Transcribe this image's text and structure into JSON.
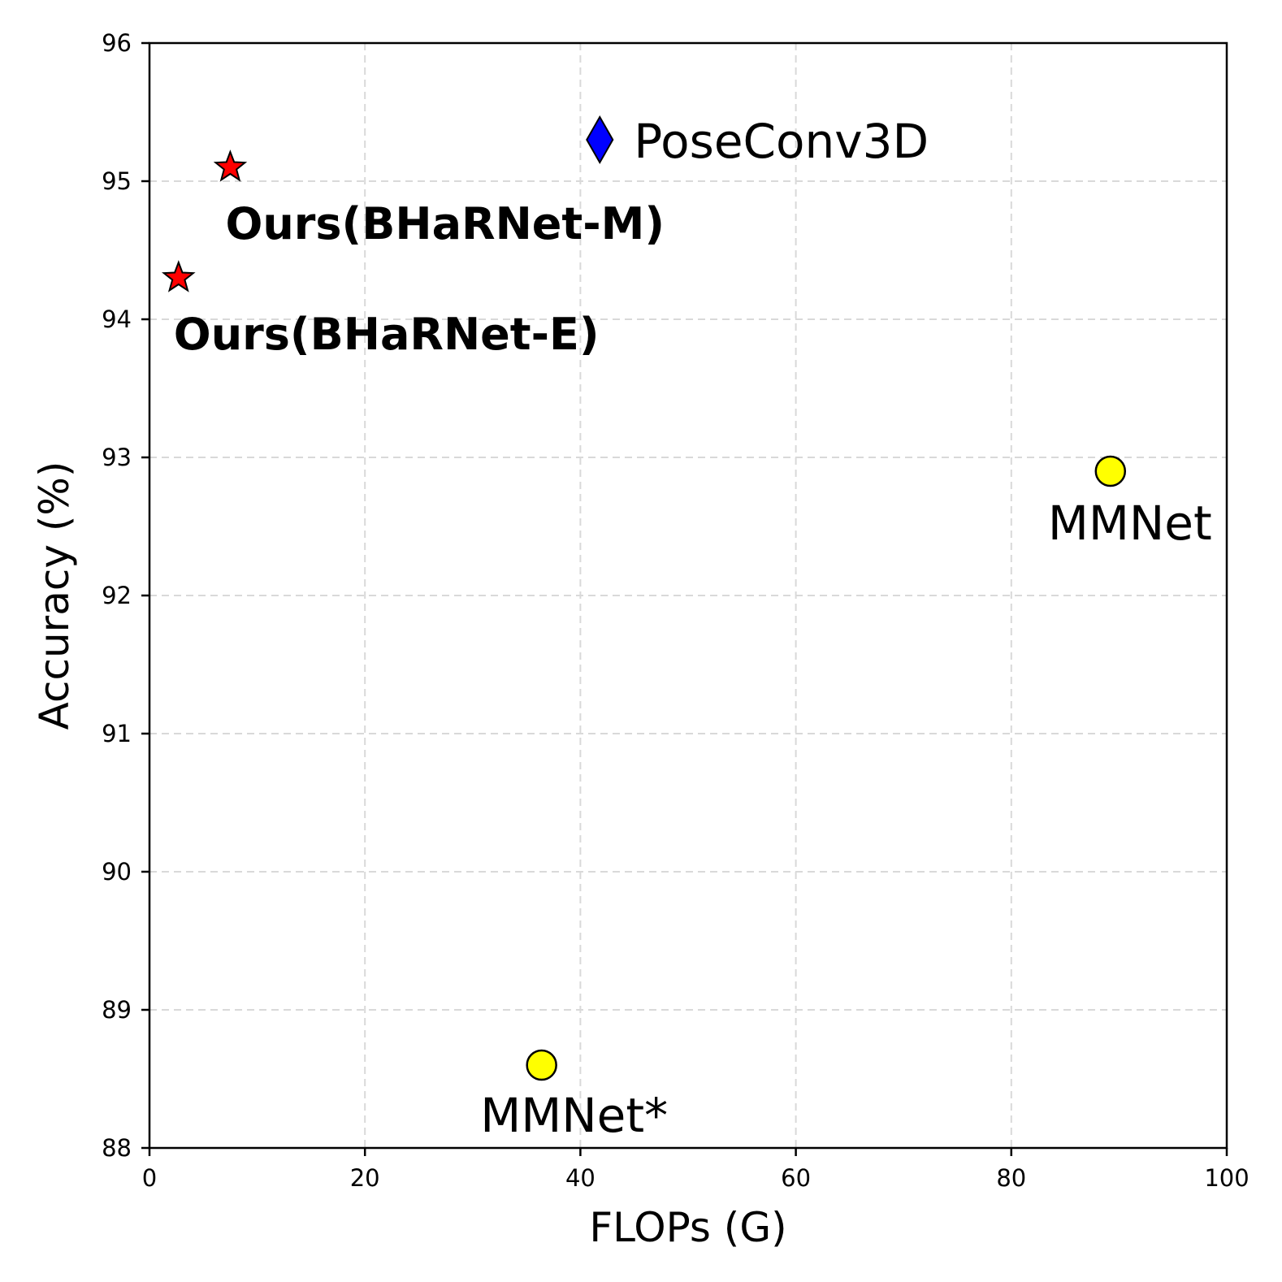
{
  "chart_data": {
    "type": "scatter",
    "title": "",
    "xlabel": "FLOPs (G)",
    "ylabel": "Accuracy (%)",
    "xlim": [
      0,
      100
    ],
    "ylim": [
      88,
      96
    ],
    "xticks": [
      "0",
      "20",
      "40",
      "60",
      "80",
      "100"
    ],
    "yticks": [
      "88",
      "89",
      "90",
      "91",
      "92",
      "93",
      "94",
      "95",
      "96"
    ],
    "grid": true,
    "points": [
      {
        "label": "Ours(BHaRNet-M)",
        "x": 7.5,
        "y": 95.1,
        "marker": "star",
        "color": "#ff0000",
        "bold": true
      },
      {
        "label": "Ours(BHaRNet-E)",
        "x": 2.7,
        "y": 94.3,
        "marker": "star",
        "color": "#ff0000",
        "bold": true
      },
      {
        "label": "PoseConv3D",
        "x": 41.8,
        "y": 95.3,
        "marker": "diamond",
        "color": "#0000ff",
        "bold": false
      },
      {
        "label": "MMNet",
        "x": 89.2,
        "y": 92.9,
        "marker": "circle",
        "color": "#ffff00",
        "bold": false
      },
      {
        "label": "MMNet*",
        "x": 36.4,
        "y": 88.6,
        "marker": "circle",
        "color": "#ffff00",
        "bold": false
      }
    ]
  }
}
